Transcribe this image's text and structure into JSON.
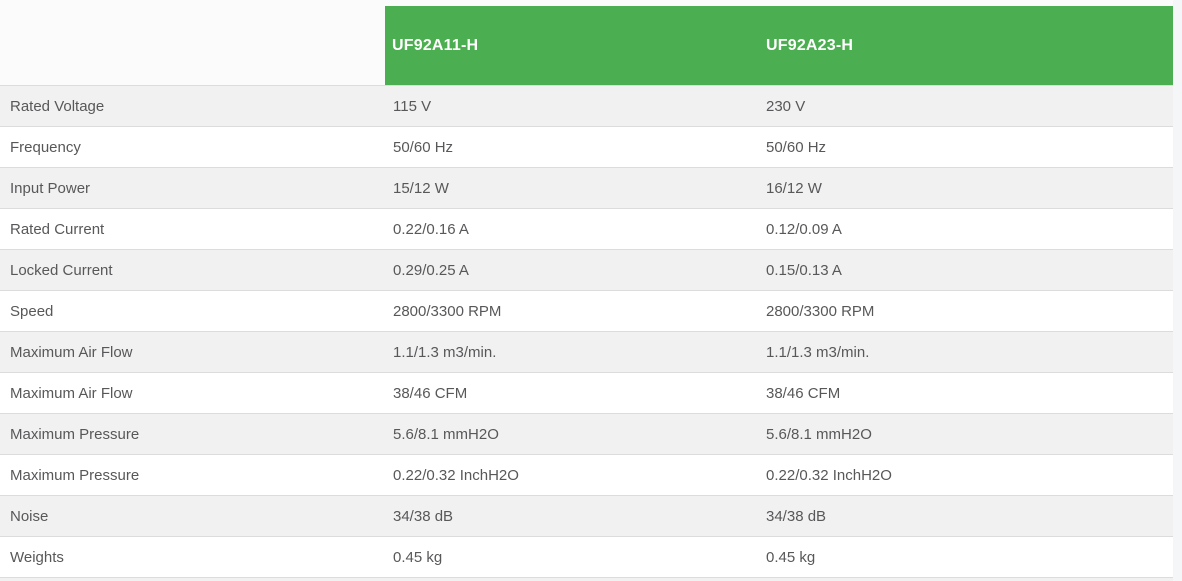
{
  "table": {
    "header": {
      "columns": [
        "UF92A11-H",
        "UF92A23-H"
      ]
    },
    "rows": [
      {
        "label": "Rated Voltage",
        "col1": "115 V",
        "col2": "230 V"
      },
      {
        "label": "Frequency",
        "col1": "50/60 Hz",
        "col2": "50/60 Hz"
      },
      {
        "label": "Input Power",
        "col1": "15/12 W",
        "col2": "16/12 W"
      },
      {
        "label": "Rated Current",
        "col1": "0.22/0.16 A",
        "col2": "0.12/0.09 A"
      },
      {
        "label": "Locked Current",
        "col1": "0.29/0.25 A",
        "col2": "0.15/0.13 A"
      },
      {
        "label": "Speed",
        "col1": "2800/3300 RPM",
        "col2": "2800/3300 RPM"
      },
      {
        "label": "Maximum Air Flow",
        "col1": "1.1/1.3 m3/min.",
        "col2": "1.1/1.3 m3/min."
      },
      {
        "label": "Maximum Air Flow",
        "col1": "38/46 CFM",
        "col2": "38/46 CFM"
      },
      {
        "label": "Maximum Pressure",
        "col1": "5.6/8.1 mmH2O",
        "col2": "5.6/8.1 mmH2O"
      },
      {
        "label": "Maximum Pressure",
        "col1": "0.22/0.32 InchH2O",
        "col2": "0.22/0.32 InchH2O"
      },
      {
        "label": "Noise",
        "col1": "34/38 dB",
        "col2": "34/38 dB"
      },
      {
        "label": "Weights",
        "col1": "0.45 kg",
        "col2": "0.45 kg"
      }
    ],
    "colors": {
      "header_background": "#4BAE50",
      "header_text": "#ffffff",
      "row_alt_background": "#f1f1f1",
      "row_background": "#ffffff",
      "border": "#dcdcdc",
      "text": "#58585a"
    }
  }
}
